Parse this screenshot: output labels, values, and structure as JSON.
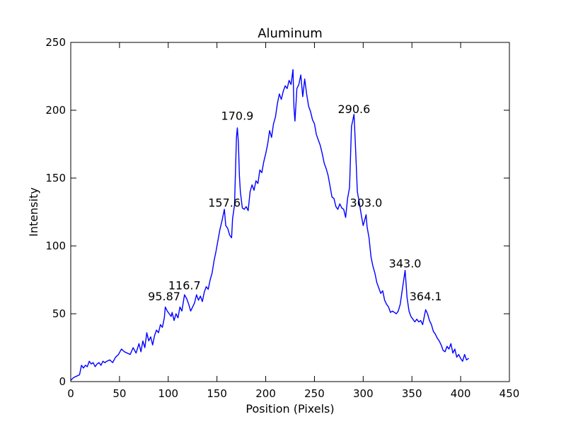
{
  "chart_data": {
    "type": "line",
    "title": "Aluminum",
    "xlabel": "Position (Pixels)",
    "ylabel": "Intensity",
    "xlim": [
      0,
      450
    ],
    "ylim": [
      0,
      250
    ],
    "x_ticks": [
      0,
      50,
      100,
      150,
      200,
      250,
      300,
      350,
      400,
      450
    ],
    "y_ticks": [
      0,
      50,
      100,
      150,
      200,
      250
    ],
    "grid": false,
    "line_color": "#0000ff",
    "series": [
      {
        "points": [
          [
            0,
            1
          ],
          [
            3,
            3
          ],
          [
            6,
            4
          ],
          [
            9,
            5
          ],
          [
            11,
            12
          ],
          [
            13,
            10
          ],
          [
            15,
            12
          ],
          [
            17,
            11
          ],
          [
            19,
            15
          ],
          [
            21,
            13
          ],
          [
            23,
            14
          ],
          [
            25,
            11
          ],
          [
            27,
            13
          ],
          [
            29,
            14
          ],
          [
            31,
            12
          ],
          [
            33,
            15
          ],
          [
            35,
            14
          ],
          [
            37,
            15
          ],
          [
            40,
            16
          ],
          [
            43,
            14
          ],
          [
            46,
            18
          ],
          [
            49,
            20
          ],
          [
            52,
            24
          ],
          [
            55,
            22
          ],
          [
            58,
            21
          ],
          [
            61,
            20
          ],
          [
            64,
            25
          ],
          [
            67,
            21
          ],
          [
            70,
            28
          ],
          [
            72,
            22
          ],
          [
            74,
            30
          ],
          [
            76,
            25
          ],
          [
            78,
            36
          ],
          [
            80,
            30
          ],
          [
            82,
            33
          ],
          [
            84,
            27
          ],
          [
            86,
            34
          ],
          [
            88,
            38
          ],
          [
            90,
            36
          ],
          [
            92,
            42
          ],
          [
            94,
            40
          ],
          [
            96,
            47
          ],
          [
            97,
            55
          ],
          [
            99,
            52
          ],
          [
            101,
            50
          ],
          [
            103,
            48
          ],
          [
            104,
            51
          ],
          [
            106,
            45
          ],
          [
            108,
            50
          ],
          [
            110,
            47
          ],
          [
            112,
            55
          ],
          [
            114,
            52
          ],
          [
            116.7,
            64
          ],
          [
            119,
            61
          ],
          [
            121,
            57
          ],
          [
            123,
            52
          ],
          [
            125,
            55
          ],
          [
            127,
            58
          ],
          [
            129,
            64
          ],
          [
            131,
            60
          ],
          [
            133,
            63
          ],
          [
            135,
            59
          ],
          [
            137,
            66
          ],
          [
            139,
            70
          ],
          [
            141,
            68
          ],
          [
            143,
            75
          ],
          [
            145,
            80
          ],
          [
            147,
            89
          ],
          [
            149,
            96
          ],
          [
            151,
            104
          ],
          [
            153,
            112
          ],
          [
            155,
            118
          ],
          [
            157.6,
            127
          ],
          [
            159,
            115
          ],
          [
            161,
            113
          ],
          [
            163,
            108
          ],
          [
            165,
            106
          ],
          [
            166,
            120
          ],
          [
            168,
            130
          ],
          [
            170,
            180
          ],
          [
            170.9,
            187
          ],
          [
            172,
            176
          ],
          [
            173,
            152
          ],
          [
            174,
            140
          ],
          [
            176,
            128
          ],
          [
            178,
            127
          ],
          [
            180,
            129
          ],
          [
            182,
            126
          ],
          [
            184,
            140
          ],
          [
            186,
            145
          ],
          [
            188,
            141
          ],
          [
            190,
            148
          ],
          [
            192,
            146
          ],
          [
            194,
            156
          ],
          [
            196,
            154
          ],
          [
            198,
            162
          ],
          [
            200,
            168
          ],
          [
            202,
            175
          ],
          [
            204,
            185
          ],
          [
            206,
            180
          ],
          [
            208,
            190
          ],
          [
            210,
            195
          ],
          [
            212,
            205
          ],
          [
            214,
            212
          ],
          [
            216,
            208
          ],
          [
            218,
            214
          ],
          [
            220,
            218
          ],
          [
            222,
            216
          ],
          [
            224,
            222
          ],
          [
            226,
            219
          ],
          [
            228,
            230
          ],
          [
            229,
            202
          ],
          [
            230,
            192
          ],
          [
            232,
            216
          ],
          [
            234,
            219
          ],
          [
            236,
            226
          ],
          [
            238,
            210
          ],
          [
            240,
            223
          ],
          [
            242,
            212
          ],
          [
            244,
            203
          ],
          [
            246,
            199
          ],
          [
            248,
            193
          ],
          [
            250,
            190
          ],
          [
            252,
            182
          ],
          [
            254,
            178
          ],
          [
            256,
            174
          ],
          [
            258,
            168
          ],
          [
            260,
            161
          ],
          [
            262,
            157
          ],
          [
            264,
            152
          ],
          [
            266,
            144
          ],
          [
            268,
            136
          ],
          [
            270,
            135
          ],
          [
            272,
            129
          ],
          [
            274,
            127
          ],
          [
            276,
            131
          ],
          [
            278,
            128
          ],
          [
            280,
            127
          ],
          [
            282,
            121
          ],
          [
            284,
            135
          ],
          [
            286,
            143
          ],
          [
            288,
            188
          ],
          [
            290.6,
            197
          ],
          [
            292,
            175
          ],
          [
            294,
            140
          ],
          [
            296,
            132
          ],
          [
            298,
            123
          ],
          [
            300,
            115
          ],
          [
            303,
            123
          ],
          [
            304,
            114
          ],
          [
            306,
            106
          ],
          [
            308,
            92
          ],
          [
            310,
            85
          ],
          [
            312,
            80
          ],
          [
            314,
            73
          ],
          [
            316,
            69
          ],
          [
            318,
            65
          ],
          [
            320,
            67
          ],
          [
            322,
            60
          ],
          [
            324,
            57
          ],
          [
            326,
            55
          ],
          [
            328,
            51
          ],
          [
            330,
            52
          ],
          [
            332,
            51
          ],
          [
            334,
            50
          ],
          [
            336,
            52
          ],
          [
            338,
            57
          ],
          [
            340,
            67
          ],
          [
            343,
            82
          ],
          [
            345,
            62
          ],
          [
            347,
            52
          ],
          [
            349,
            48
          ],
          [
            351,
            46
          ],
          [
            353,
            44
          ],
          [
            355,
            46
          ],
          [
            357,
            44
          ],
          [
            359,
            45
          ],
          [
            361,
            42
          ],
          [
            364.1,
            53
          ],
          [
            366,
            50
          ],
          [
            368,
            45
          ],
          [
            370,
            42
          ],
          [
            372,
            37
          ],
          [
            374,
            35
          ],
          [
            376,
            32
          ],
          [
            378,
            30
          ],
          [
            380,
            27
          ],
          [
            382,
            23
          ],
          [
            384,
            22
          ],
          [
            386,
            26
          ],
          [
            388,
            24
          ],
          [
            390,
            28
          ],
          [
            392,
            21
          ],
          [
            394,
            24
          ],
          [
            396,
            18
          ],
          [
            398,
            20
          ],
          [
            400,
            17
          ],
          [
            402,
            15
          ],
          [
            404,
            20
          ],
          [
            406,
            16
          ],
          [
            408,
            17
          ]
        ]
      }
    ],
    "annotations": [
      {
        "x": 95.87,
        "y": 60,
        "label": "95.87"
      },
      {
        "x": 116.7,
        "y": 68,
        "label": "116.7"
      },
      {
        "x": 157.6,
        "y": 129,
        "label": "157.6"
      },
      {
        "x": 170.9,
        "y": 193,
        "label": "170.9"
      },
      {
        "x": 290.6,
        "y": 198,
        "label": "290.6"
      },
      {
        "x": 303.0,
        "y": 129,
        "label": "303.0"
      },
      {
        "x": 343.0,
        "y": 84,
        "label": "343.0"
      },
      {
        "x": 364.1,
        "y": 60,
        "label": "364.1"
      }
    ]
  }
}
